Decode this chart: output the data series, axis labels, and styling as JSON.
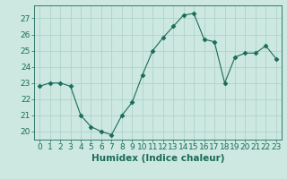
{
  "x": [
    0,
    1,
    2,
    3,
    4,
    5,
    6,
    7,
    8,
    9,
    10,
    11,
    12,
    13,
    14,
    15,
    16,
    17,
    18,
    19,
    20,
    21,
    22,
    23
  ],
  "y": [
    22.8,
    23.0,
    23.0,
    22.8,
    21.0,
    20.3,
    20.0,
    19.8,
    21.0,
    21.8,
    23.5,
    25.0,
    25.8,
    26.5,
    27.2,
    27.3,
    25.7,
    25.55,
    23.0,
    24.6,
    24.85,
    24.85,
    25.3,
    24.5
  ],
  "line_color": "#1a6b5a",
  "marker": "D",
  "marker_size": 2.5,
  "marker_color": "#1a6b5a",
  "bg_color": "#cce8e0",
  "grid_color": "#aacfc6",
  "xlabel": "Humidex (Indice chaleur)",
  "xlabel_fontsize": 7.5,
  "tick_fontsize": 6.5,
  "ylim": [
    19.5,
    27.8
  ],
  "yticks": [
    20,
    21,
    22,
    23,
    24,
    25,
    26,
    27
  ],
  "xlim": [
    -0.5,
    23.5
  ],
  "xticks": [
    0,
    1,
    2,
    3,
    4,
    5,
    6,
    7,
    8,
    9,
    10,
    11,
    12,
    13,
    14,
    15,
    16,
    17,
    18,
    19,
    20,
    21,
    22,
    23
  ]
}
